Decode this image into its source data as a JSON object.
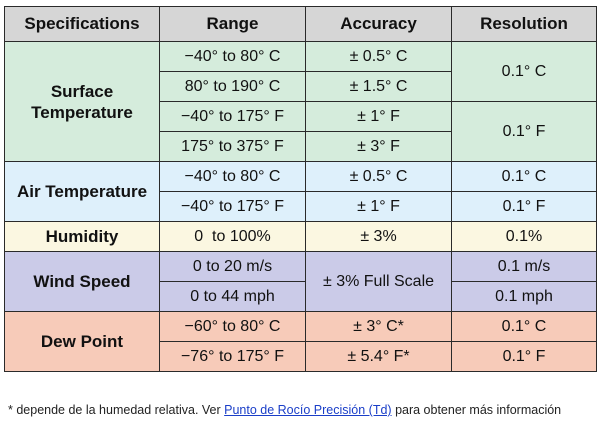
{
  "table": {
    "header": [
      "Specifications",
      "Range",
      "Accuracy",
      "Resolution"
    ],
    "surface": {
      "name": "Surface Temperature",
      "ranges": [
        "−40° to 80° C",
        "80° to 190° C",
        "−40° to 175° F",
        "175° to 375° F"
      ],
      "accuracy": [
        "± 0.5° C",
        "± 1.5° C",
        "± 1° F",
        "± 3° F"
      ],
      "resolution": [
        "0.1° C",
        "0.1° F"
      ]
    },
    "air": {
      "name": "Air Temperature",
      "ranges": [
        "−40° to 80° C",
        "−40° to 175° F"
      ],
      "accuracy": [
        "± 0.5° C",
        "± 1° F"
      ],
      "resolution": [
        "0.1° C",
        "0.1° F"
      ]
    },
    "humidity": {
      "name": "Humidity",
      "range": "0  to 100%",
      "accuracy": "± 3%",
      "resolution": "0.1%"
    },
    "wind": {
      "name": "Wind Speed",
      "ranges": [
        "0 to 20 m/s",
        "0 to 44 mph"
      ],
      "accuracy": "± 3% Full Scale",
      "resolution": [
        "0.1 m/s",
        "0.1 mph"
      ]
    },
    "dew": {
      "name": "Dew Point",
      "ranges": [
        "−60° to 80° C",
        "−76° to 175° F"
      ],
      "accuracy": [
        "± 3° C*",
        "± 5.4° F*"
      ],
      "resolution": [
        "0.1° C",
        "0.1° F"
      ]
    }
  },
  "footnote": {
    "before": "* depende de la humedad relativa. Ver ",
    "link": "Punto de Rocío Precisión (Td)",
    "after": " para obtener más información"
  }
}
